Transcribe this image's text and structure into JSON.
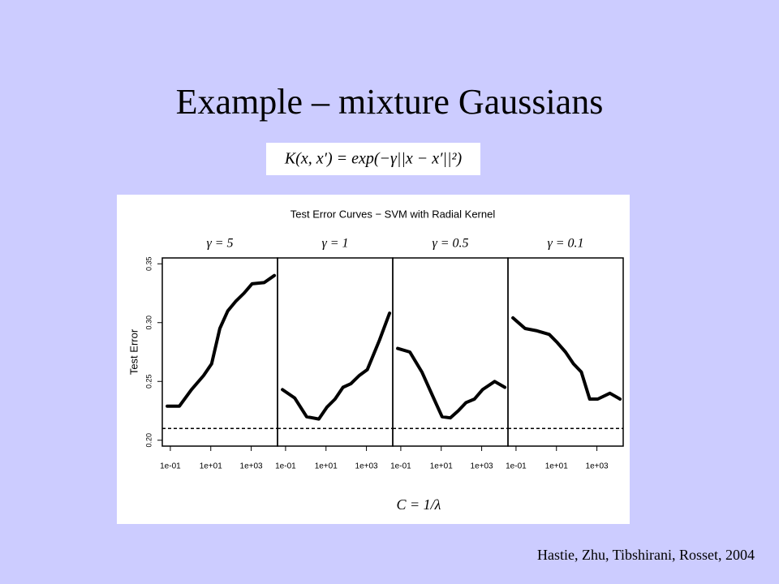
{
  "slide": {
    "title": "Example – mixture Gaussians",
    "formula": "K(x, x′) = exp(−γ||x − x′||²)",
    "citation": "Hastie, Zhu, Tibshirani, Rosset, 2004"
  },
  "figure": {
    "title": "Test Error Curves − SVM with Radial Kernel",
    "xlabel": "C = 1/λ",
    "ylabel": "Test Error"
  },
  "chart_data": [
    {
      "type": "line",
      "title": "γ = 5",
      "log_x": true,
      "color": "#000000",
      "x": [
        0.07,
        0.28,
        1.1,
        4.4,
        11,
        28,
        69,
        170,
        440,
        1100,
        4400,
        14000
      ],
      "values": [
        0.229,
        0.229,
        0.243,
        0.255,
        0.265,
        0.295,
        0.31,
        0.318,
        0.325,
        0.333,
        0.334,
        0.34
      ],
      "reference_line": 0.21,
      "xlim": [
        0.04,
        20000
      ],
      "xticks": [
        {
          "value": 0.1,
          "label": "1e-01"
        },
        {
          "value": 10,
          "label": "1e+01"
        },
        {
          "value": 1000,
          "label": "1e+03"
        }
      ],
      "ylim": [
        0.195,
        0.355
      ],
      "yticks": [
        {
          "value": 0.2,
          "label": "0.20"
        },
        0.25,
        {
          "value": 0.3,
          "label": "0.30"
        },
        0.35
      ]
    },
    {
      "type": "line",
      "title": "γ = 1",
      "log_x": true,
      "color": "#000000",
      "x": [
        0.07,
        0.28,
        1.1,
        4.4,
        11,
        28,
        69,
        170,
        440,
        1100,
        4400,
        14000
      ],
      "values": [
        0.243,
        0.236,
        0.22,
        0.218,
        0.228,
        0.235,
        0.245,
        0.248,
        0.255,
        0.26,
        0.285,
        0.308
      ],
      "reference_line": 0.21,
      "xlim": [
        0.04,
        20000
      ],
      "xticks": [
        {
          "value": 0.1,
          "label": "1e-01"
        },
        {
          "value": 10,
          "label": "1e+01"
        },
        {
          "value": 1000,
          "label": "1e+03"
        }
      ],
      "ylim": [
        0.195,
        0.355
      ]
    },
    {
      "type": "line",
      "title": "γ = 0.5",
      "log_x": true,
      "color": "#000000",
      "x": [
        0.07,
        0.28,
        1.1,
        4.4,
        11,
        28,
        69,
        170,
        440,
        1100,
        4400,
        14000
      ],
      "values": [
        0.278,
        0.275,
        0.258,
        0.235,
        0.22,
        0.219,
        0.225,
        0.232,
        0.235,
        0.243,
        0.25,
        0.245
      ],
      "reference_line": 0.21,
      "xlim": [
        0.04,
        20000
      ],
      "xticks": [
        {
          "value": 0.1,
          "label": "1e-01"
        },
        {
          "value": 10,
          "label": "1e+01"
        },
        {
          "value": 1000,
          "label": "1e+03"
        }
      ],
      "ylim": [
        0.195,
        0.355
      ]
    },
    {
      "type": "line",
      "title": "γ = 0.1",
      "log_x": true,
      "color": "#000000",
      "x": [
        0.07,
        0.28,
        1.1,
        4.4,
        11,
        28,
        69,
        170,
        440,
        1100,
        4400,
        14000
      ],
      "values": [
        0.304,
        0.295,
        0.293,
        0.29,
        0.283,
        0.275,
        0.265,
        0.258,
        0.235,
        0.235,
        0.24,
        0.235
      ],
      "reference_line": 0.21,
      "xlim": [
        0.04,
        20000
      ],
      "xticks": [
        {
          "value": 0.1,
          "label": "1e-01"
        },
        {
          "value": 10,
          "label": "1e+01"
        },
        {
          "value": 1000,
          "label": "1e+03"
        }
      ],
      "ylim": [
        0.195,
        0.355
      ]
    }
  ]
}
